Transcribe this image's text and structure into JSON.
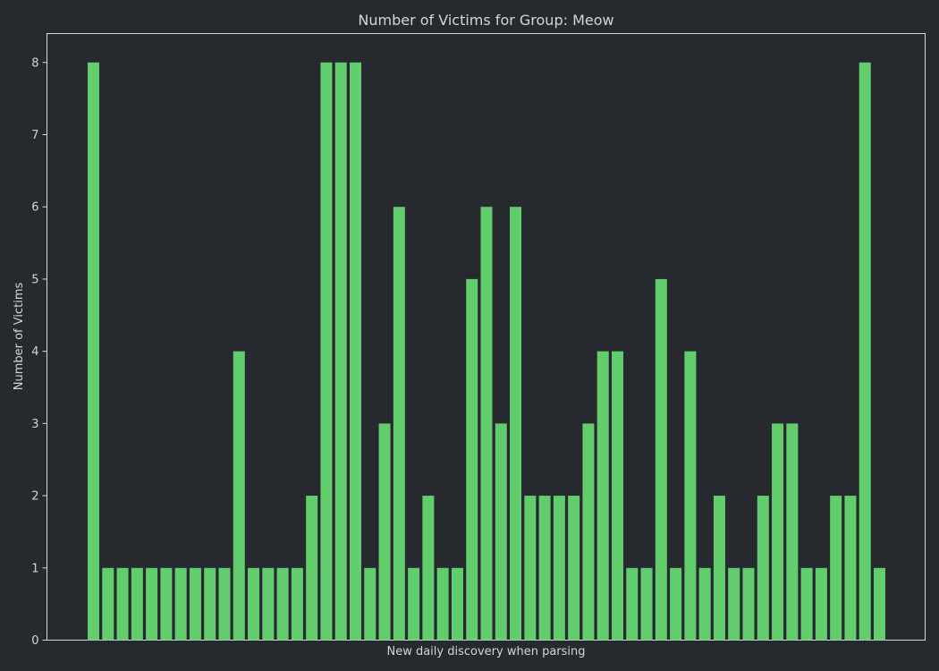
{
  "chart_data": {
    "type": "bar",
    "title": "Number of Victims for Group: Meow",
    "xlabel": "New daily discovery when parsing",
    "ylabel": "Number of Victims",
    "ylim": [
      0,
      8.4
    ],
    "yticks": [
      "0",
      "1",
      "2",
      "3",
      "4",
      "5",
      "6",
      "7",
      "8"
    ],
    "grid": false,
    "bar_color": "#62cd6d",
    "background_color": "#26292e",
    "text_color": "#d4d4d4",
    "values": [
      8,
      1,
      1,
      1,
      1,
      1,
      1,
      1,
      1,
      1,
      4,
      1,
      1,
      1,
      1,
      2,
      8,
      8,
      8,
      1,
      3,
      6,
      1,
      2,
      1,
      1,
      5,
      6,
      3,
      6,
      2,
      2,
      2,
      2,
      3,
      4,
      4,
      1,
      1,
      5,
      1,
      4,
      1,
      2,
      1,
      1,
      2,
      3,
      3,
      1,
      1,
      2,
      2,
      8,
      1
    ]
  }
}
